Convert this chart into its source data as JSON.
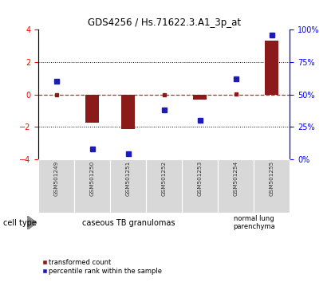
{
  "title": "GDS4256 / Hs.71622.3.A1_3p_at",
  "samples": [
    "GSM501249",
    "GSM501250",
    "GSM501251",
    "GSM501252",
    "GSM501253",
    "GSM501254",
    "GSM501255"
  ],
  "transformed_count": [
    0.0,
    -1.75,
    -2.15,
    0.0,
    -0.3,
    0.05,
    3.3
  ],
  "percentile_rank": [
    60,
    8,
    4,
    38,
    30,
    62,
    96
  ],
  "ylim_left": [
    -4,
    4
  ],
  "ylim_right": [
    0,
    100
  ],
  "yticks_left": [
    -4,
    -2,
    0,
    2,
    4
  ],
  "yticks_right": [
    0,
    25,
    50,
    75,
    100
  ],
  "ytick_labels_right": [
    "0%",
    "25%",
    "50%",
    "75%",
    "100%"
  ],
  "red_color": "#8B1A1A",
  "blue_color": "#1C1CB4",
  "dashed_red": "#CC2222",
  "group1_count": 5,
  "group2_count": 2,
  "group1_label": "caseous TB granulomas",
  "group2_label": "normal lung\nparenchyma",
  "cell_type_label": "cell type",
  "legend_red": "transformed count",
  "legend_blue": "percentile rank within the sample",
  "sample_bg": "#d8d8d8",
  "group1_bg": "#c0eec0",
  "group2_bg": "#70d470"
}
